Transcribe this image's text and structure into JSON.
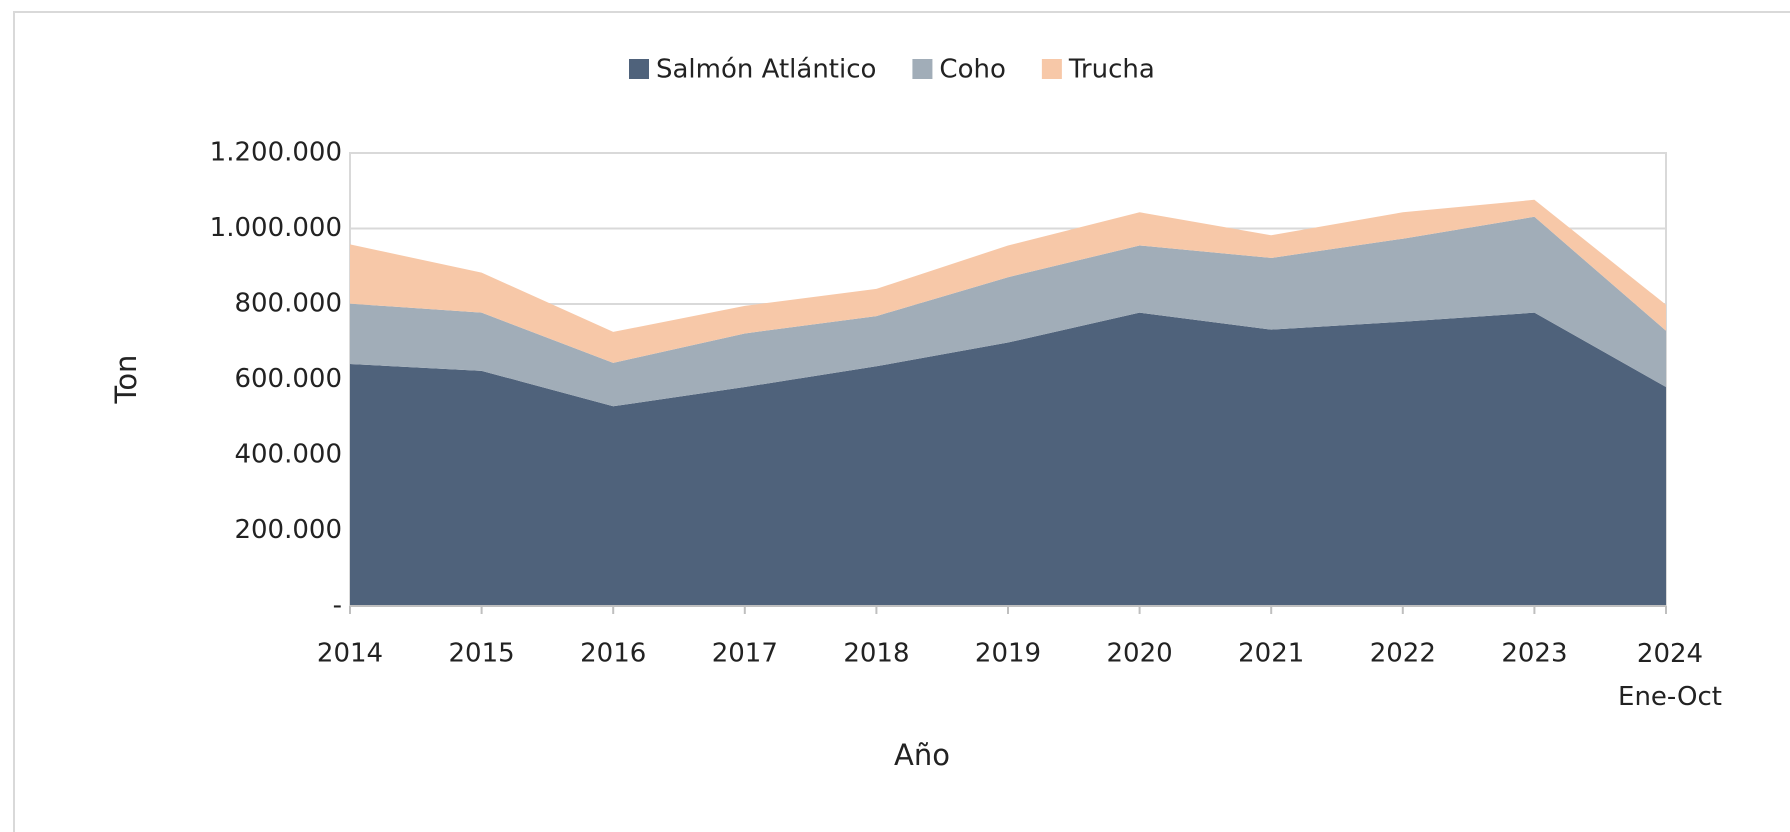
{
  "chart_data": {
    "type": "stacked_area",
    "x_label": "Año",
    "y_label": "Ton",
    "categories": [
      "2014",
      "2015",
      "2016",
      "2017",
      "2018",
      "2019",
      "2020",
      "2021",
      "2022",
      "2023",
      "2024\nEne-Oct"
    ],
    "series": [
      {
        "name": "Salmón Atlántico",
        "color": "#4f627b",
        "values": [
          641000,
          623000,
          529000,
          580000,
          635000,
          698000,
          777000,
          732000,
          753000,
          777000,
          580000
        ]
      },
      {
        "name": "Coho",
        "color": "#a1adb8",
        "values": [
          160000,
          154000,
          115000,
          142000,
          133000,
          173000,
          178000,
          190000,
          220000,
          254000,
          149000
        ]
      },
      {
        "name": "Trucha",
        "color": "#f7c8a8",
        "values": [
          157000,
          106000,
          82000,
          73000,
          72000,
          84000,
          88000,
          60000,
          70000,
          45000,
          69000
        ]
      }
    ],
    "ylim": [
      0,
      1200000
    ],
    "yticks": [
      {
        "value": 0,
        "label": "-"
      },
      {
        "value": 200000,
        "label": "200.000"
      },
      {
        "value": 400000,
        "label": "400.000"
      },
      {
        "value": 600000,
        "label": "600.000"
      },
      {
        "value": 800000,
        "label": "800.000"
      },
      {
        "value": 1000000,
        "label": "1.000.000"
      },
      {
        "value": 1200000,
        "label": "1.200.000"
      }
    ],
    "grid": true,
    "legend": "top"
  }
}
